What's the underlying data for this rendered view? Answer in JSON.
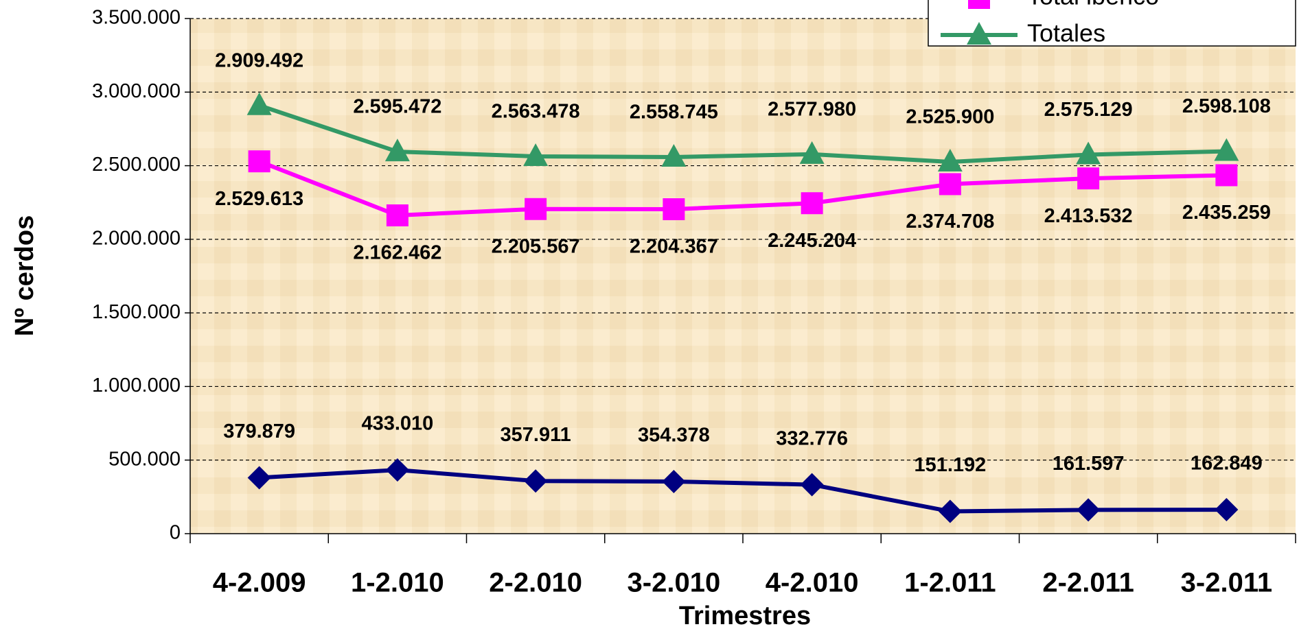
{
  "chart_data": {
    "type": "line",
    "x_label": "Trimestres",
    "y_label": "Nº cerdos",
    "categories": [
      "4-2.009",
      "1-2.010",
      "2-2.010",
      "3-2.010",
      "4-2.010",
      "1-2.011",
      "2-2.011",
      "3-2.011"
    ],
    "series": [
      {
        "color": "#000080",
        "marker": "diamond",
        "values": [
          379879,
          433010,
          357911,
          354378,
          332776,
          151192,
          161597,
          162849
        ],
        "value_labels": [
          "379.879",
          "433.010",
          "357.911",
          "354.378",
          "332.776",
          "151.192",
          "161.597",
          "162.849"
        ]
      },
      {
        "name": "Total ibérico",
        "color": "#ff00ff",
        "marker": "square",
        "values": [
          2529613,
          2162462,
          2205567,
          2204367,
          2245204,
          2374708,
          2413532,
          2435259
        ],
        "value_labels": [
          "2.529.613",
          "2.162.462",
          "2.205.567",
          "2.204.367",
          "2.245.204",
          "2.374.708",
          "2.413.532",
          "2.435.259"
        ]
      },
      {
        "name": "Totales",
        "color": "#339966",
        "marker": "triangle",
        "values": [
          2909492,
          2595472,
          2563478,
          2558745,
          2577980,
          2525900,
          2575129,
          2598108
        ],
        "value_labels": [
          "2.909.492",
          "2.595.472",
          "2.563.478",
          "2.558.745",
          "2.577.980",
          "2.525.900",
          "2.575.129",
          "2.598.108"
        ]
      }
    ],
    "ylim": [
      0,
      3500000
    ],
    "yticks": [
      0,
      {
        "value": 500000,
        "label": "500.000"
      },
      {
        "value": 1000000,
        "label": "1.000.000"
      },
      {
        "value": 1500000,
        "label": "1.500.000"
      },
      {
        "value": 2000000,
        "label": "2.000.000"
      },
      {
        "value": 2500000,
        "label": "2.500.000"
      },
      {
        "value": 3000000,
        "label": "3.000.000"
      },
      {
        "value": 3500000,
        "label": "3.500.000"
      }
    ],
    "grid": true,
    "legend": "top-right"
  }
}
